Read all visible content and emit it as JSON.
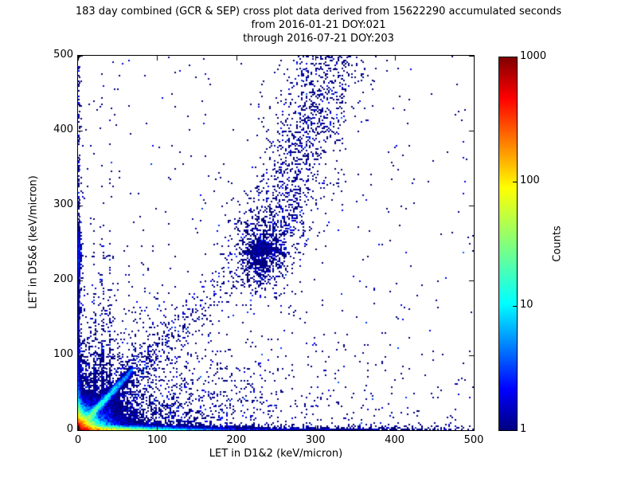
{
  "figure": {
    "background": "#ffffff",
    "title_lines": [
      "183 day combined (GCR & SEP) cross plot data derived from 15622290 accumulated seconds",
      "from 2016-01-21 DOY:021",
      "through 2016-07-21 DOY:203"
    ]
  },
  "chart_data": {
    "type": "heatmap",
    "title": "183 day combined (GCR & SEP) cross plot data derived from 15622290 accumulated seconds",
    "subtitle_lines": [
      "from 2016-01-21 DOY:021",
      "through 2016-07-21 DOY:203"
    ],
    "accumulated_seconds": 15622290,
    "date_start": "2016-01-21",
    "doy_start": "021",
    "date_end": "2016-07-21",
    "doy_end": "203",
    "xlabel": "LET in D1&2 (keV/micron)",
    "ylabel": "LET in D5&6 (keV/micron)",
    "xlim": [
      0,
      500
    ],
    "ylim": [
      0,
      500
    ],
    "x_ticks": [
      0,
      100,
      200,
      300,
      400,
      500
    ],
    "y_ticks": [
      0,
      100,
      200,
      300,
      400,
      500
    ],
    "grid": false,
    "point_color_low": "#000080",
    "colorbar": {
      "label": "Counts",
      "scale": "log",
      "min": 1,
      "max": 1000,
      "ticks": [
        1,
        10,
        100,
        1000
      ],
      "colormap": "jet"
    },
    "colormap_stops": [
      [
        0.0,
        [
          0,
          0,
          128
        ]
      ],
      [
        0.11,
        [
          0,
          0,
          255
        ]
      ],
      [
        0.34,
        [
          0,
          255,
          255
        ]
      ],
      [
        0.65,
        [
          255,
          255,
          0
        ]
      ],
      [
        0.89,
        [
          255,
          0,
          0
        ]
      ],
      [
        1.0,
        [
          128,
          0,
          0
        ]
      ]
    ],
    "description": "2D histogram cross plot: intense hot spot (counts up to ~1000, red) at the origin; hot band along the x-axis fading red-orange-yellow-green out to ~100 keV/micron then dense blue to 500; dense blue column along the y-axis up to 500 with a denser blob near y~235; cyan-green diagonal streak y~1.15x from origin to ~60; dense blue low-LET cloud below ~(150,100) with faint vertical stripes near x=22,32,41; sparse diagonal cloud along y~x to ~270 with a denser cluster near (233,228) continuing as a steep sparse band up to (325,500); isolated count-1 navy points scattered over the rest of the plane.",
    "density_model": {
      "seed": 20160121,
      "bin_units": 2,
      "features": [
        {
          "name": "origin-hotspot",
          "kind": "corner",
          "amp": 1300,
          "sx": 8,
          "sy": 6.5
        },
        {
          "name": "bottom-hot-band",
          "kind": "hband",
          "amp": 650,
          "sx": 30,
          "sy": 1.6,
          "ymax": 6
        },
        {
          "name": "bottom-mid-band",
          "kind": "hband",
          "amp": 6,
          "sx": 160,
          "sy": 2.5,
          "ymax": 8
        },
        {
          "name": "bottom-far-band",
          "kind": "hband",
          "amp": 1.1,
          "sx": 700,
          "sy": 3.2,
          "ymax": 10
        },
        {
          "name": "left-hot-band",
          "kind": "vband",
          "amp": 420,
          "sy": 11,
          "sx": 1.6,
          "xmax": 6
        },
        {
          "name": "left-mid-band",
          "kind": "vband",
          "amp": 3.2,
          "sy": 130,
          "sx": 2.0,
          "xmax": 6
        },
        {
          "name": "left-far-band",
          "kind": "vband",
          "amp": 0.85,
          "sy": 520,
          "sx": 2.2,
          "xmax": 6
        },
        {
          "name": "left-edge-blob",
          "kind": "gauss",
          "amp": 2.6,
          "cx": 1,
          "cy": 237,
          "sx": 2.5,
          "sy": 18
        },
        {
          "name": "diagonal-streak",
          "kind": "diag",
          "amp": 50,
          "slope": 1.15,
          "width": 3.2,
          "sx": 26,
          "xmin": 2,
          "xmax": 70
        },
        {
          "name": "lowleft-blue-cloud",
          "kind": "corner",
          "amp": 3.0,
          "sx": 70,
          "sy": 45
        },
        {
          "name": "vstripe-22",
          "kind": "vline",
          "cx": 22,
          "w": 1.5,
          "amp": 1.1,
          "sy": 80
        },
        {
          "name": "vstripe-32",
          "kind": "vline",
          "cx": 32,
          "w": 1.5,
          "amp": 0.9,
          "sy": 90
        },
        {
          "name": "vstripe-41",
          "kind": "vline",
          "cx": 41,
          "w": 1.8,
          "amp": 0.8,
          "sy": 170
        },
        {
          "name": "diagonal-cloud",
          "kind": "diag",
          "amp": 0.55,
          "slope": 1.05,
          "width": 16,
          "sx": 110,
          "xmin": 30,
          "xmax": 280
        },
        {
          "name": "mid-cluster",
          "kind": "gauss",
          "amp": 0.85,
          "cx": 233,
          "cy": 228,
          "sx": 17,
          "sy": 24
        },
        {
          "name": "upper-steep-band",
          "kind": "bandY",
          "amp": 0.28,
          "x0": 233,
          "y0": 230,
          "k": 0.34,
          "width": 27,
          "ymin": 235,
          "ymax": 500
        },
        {
          "name": "lower-sparse-haze",
          "kind": "corner",
          "amp": 0.09,
          "sx": 260,
          "sy": 110
        },
        {
          "name": "background-sparse",
          "kind": "bg",
          "amp": 0.004
        }
      ]
    }
  }
}
